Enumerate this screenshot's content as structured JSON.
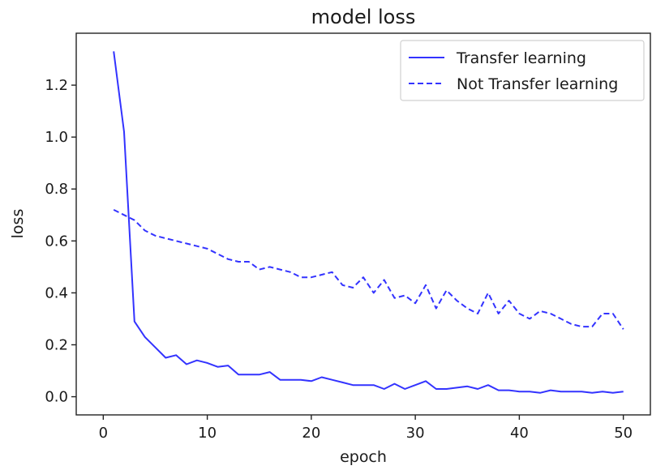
{
  "chart_data": {
    "type": "line",
    "title": "model loss",
    "xlabel": "epoch",
    "ylabel": "loss",
    "xlim": [
      -2.6,
      52.6
    ],
    "ylim": [
      -0.07,
      1.4
    ],
    "xticks": [
      0,
      10,
      20,
      30,
      40,
      50
    ],
    "yticks": [
      0.0,
      0.2,
      0.4,
      0.6,
      0.8,
      1.0,
      1.2
    ],
    "xtick_labels": [
      "0",
      "10",
      "20",
      "30",
      "40",
      "50"
    ],
    "ytick_labels": [
      "0.0",
      "0.2",
      "0.4",
      "0.6",
      "0.8",
      "1.0",
      "1.2"
    ],
    "grid": false,
    "legend_position": "top-right",
    "x": [
      1,
      2,
      3,
      4,
      5,
      6,
      7,
      8,
      9,
      10,
      11,
      12,
      13,
      14,
      15,
      16,
      17,
      18,
      19,
      20,
      21,
      22,
      23,
      24,
      25,
      26,
      27,
      28,
      29,
      30,
      31,
      32,
      33,
      34,
      35,
      36,
      37,
      38,
      39,
      40,
      41,
      42,
      43,
      44,
      45,
      46,
      47,
      48,
      49,
      50
    ],
    "series": [
      {
        "name": "Transfer learning",
        "style": "solid",
        "color": "#3333ff",
        "values": [
          1.33,
          1.02,
          0.29,
          0.23,
          0.19,
          0.15,
          0.16,
          0.125,
          0.14,
          0.13,
          0.115,
          0.12,
          0.085,
          0.085,
          0.085,
          0.095,
          0.065,
          0.065,
          0.065,
          0.06,
          0.075,
          0.065,
          0.055,
          0.045,
          0.045,
          0.045,
          0.03,
          0.05,
          0.03,
          0.045,
          0.06,
          0.03,
          0.03,
          0.035,
          0.04,
          0.03,
          0.045,
          0.025,
          0.025,
          0.02,
          0.02,
          0.015,
          0.025,
          0.02,
          0.02,
          0.02,
          0.015,
          0.02,
          0.015,
          0.02
        ]
      },
      {
        "name": "Not Transfer learning",
        "style": "dashed",
        "color": "#3333ff",
        "values": [
          0.72,
          0.7,
          0.68,
          0.64,
          0.62,
          0.61,
          0.6,
          0.59,
          0.58,
          0.57,
          0.55,
          0.53,
          0.52,
          0.52,
          0.49,
          0.5,
          0.49,
          0.48,
          0.46,
          0.46,
          0.47,
          0.48,
          0.43,
          0.42,
          0.46,
          0.4,
          0.45,
          0.38,
          0.39,
          0.36,
          0.43,
          0.34,
          0.41,
          0.37,
          0.34,
          0.32,
          0.4,
          0.32,
          0.37,
          0.32,
          0.3,
          0.33,
          0.32,
          0.3,
          0.28,
          0.27,
          0.27,
          0.32,
          0.32,
          0.26
        ]
      }
    ]
  }
}
